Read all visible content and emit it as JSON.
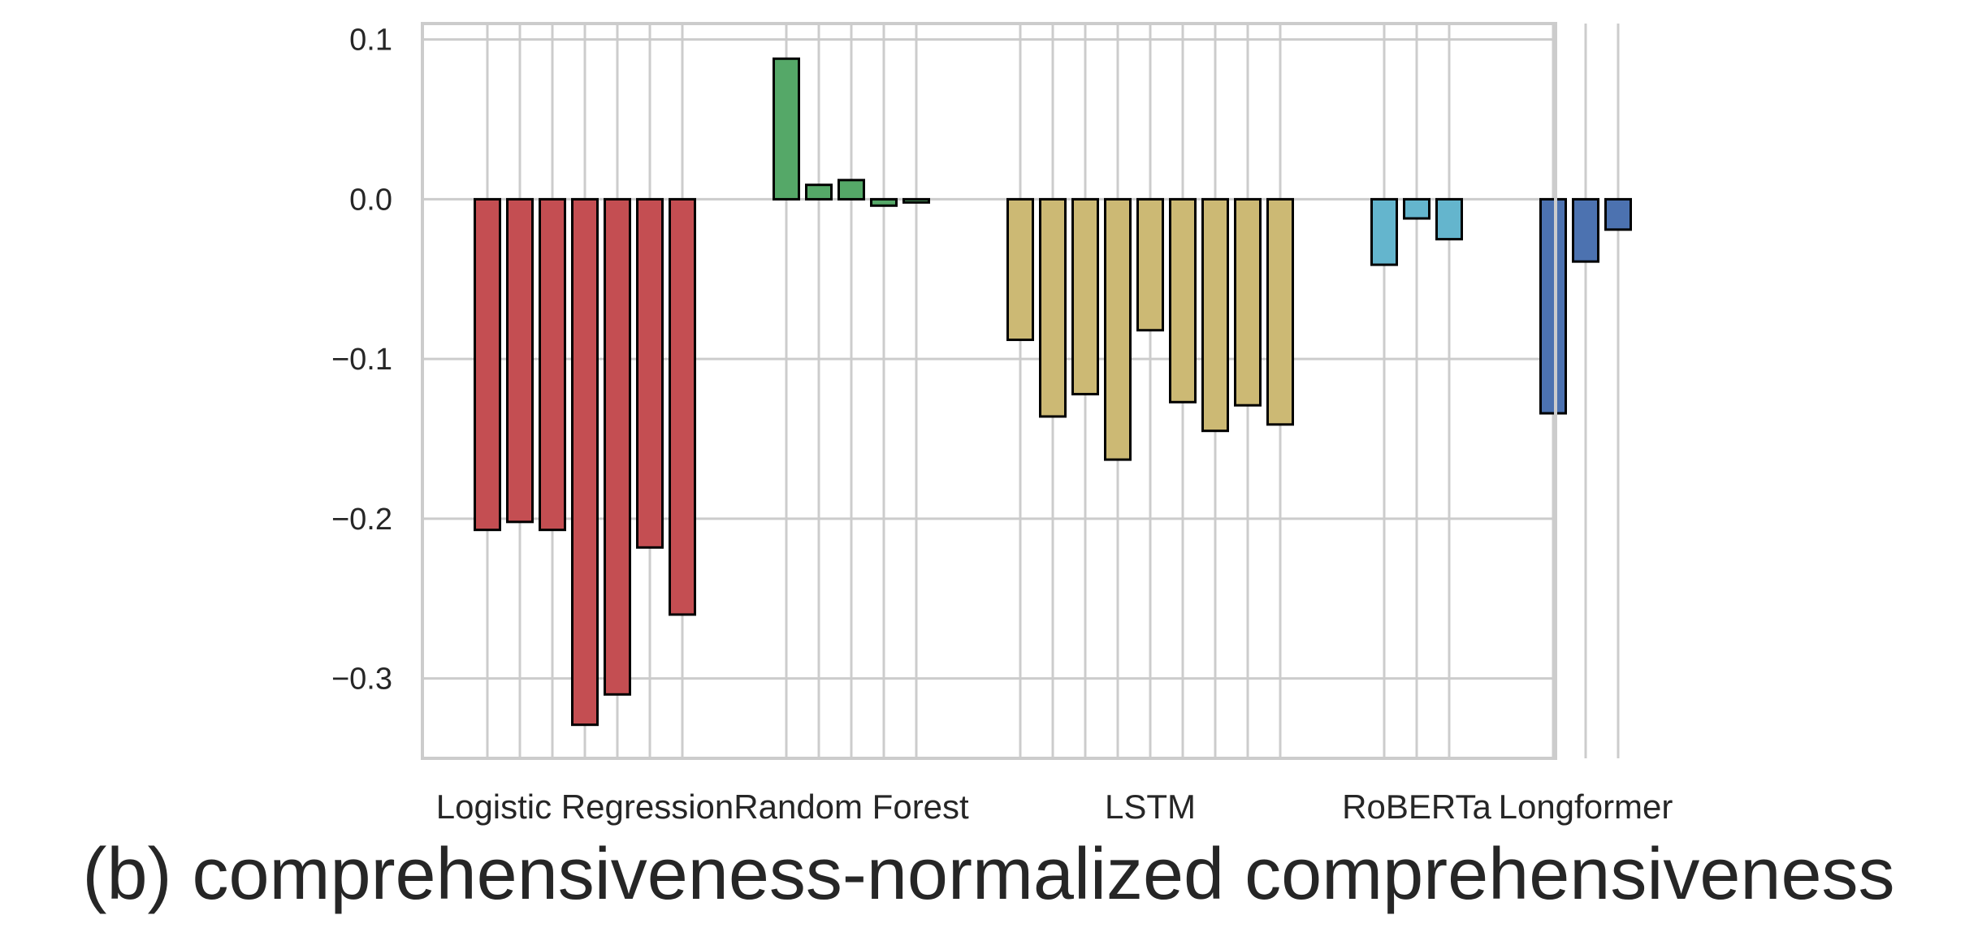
{
  "caption": "(b) comprehensiveness-normalized comprehensiveness",
  "chart_data": {
    "type": "bar",
    "title": "",
    "xlabel": "",
    "ylabel": "",
    "ylim": [
      -0.35,
      0.11
    ],
    "yticks": [
      0.1,
      0.0,
      -0.1,
      -0.2,
      -0.3
    ],
    "ytick_labels": [
      "0.1",
      "0.0",
      "−0.1",
      "−0.2",
      "−0.3"
    ],
    "grid": true,
    "groups": [
      {
        "name": "Logistic Regression",
        "color": "#c44e52",
        "values": [
          -0.207,
          -0.202,
          -0.207,
          -0.329,
          -0.31,
          -0.218,
          -0.26
        ]
      },
      {
        "name": "Random Forest",
        "color": "#55a868",
        "values": [
          0.088,
          0.009,
          0.012,
          -0.004,
          -0.002
        ]
      },
      {
        "name": "LSTM",
        "color": "#ccb974",
        "values": [
          -0.088,
          -0.136,
          -0.122,
          -0.163,
          -0.082,
          -0.127,
          -0.145,
          -0.129,
          -0.141
        ]
      },
      {
        "name": "RoBERTa",
        "color": "#64b5cd",
        "values": [
          -0.041,
          -0.012,
          -0.025
        ]
      },
      {
        "name": "Longformer",
        "color": "#4c72b0",
        "values": [
          -0.134,
          -0.039,
          -0.019
        ]
      }
    ]
  }
}
